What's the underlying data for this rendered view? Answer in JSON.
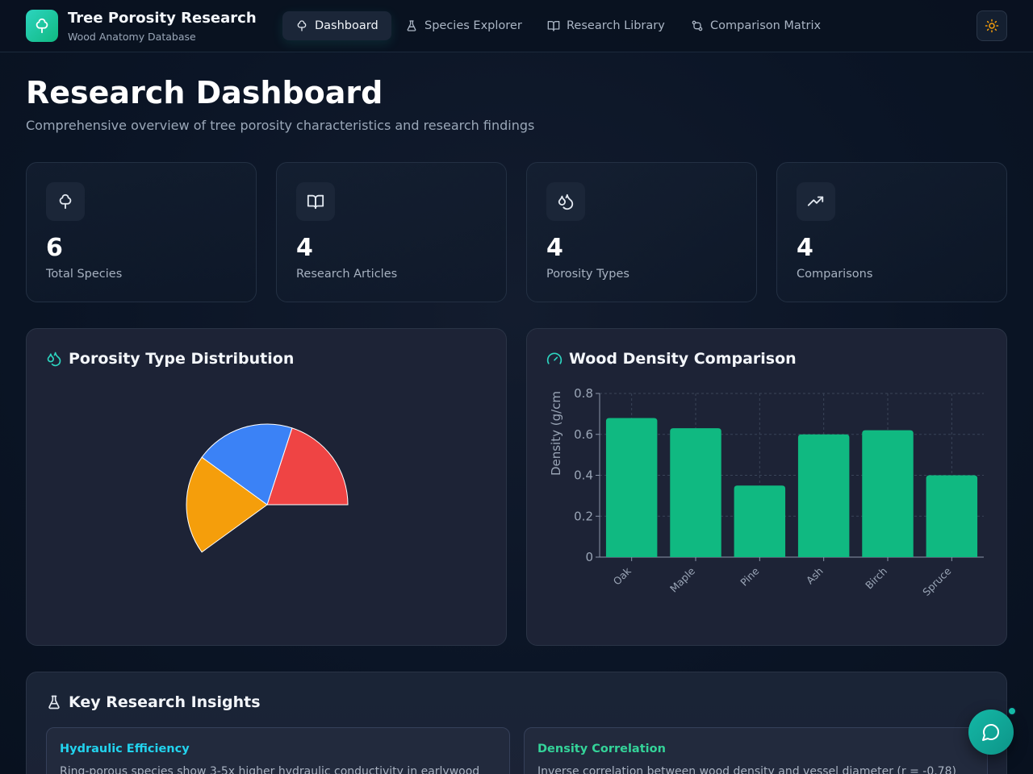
{
  "brand": {
    "title": "Tree Porosity Research",
    "subtitle": "Wood Anatomy Database"
  },
  "nav": [
    {
      "label": "Dashboard",
      "icon": "tree-icon",
      "active": true
    },
    {
      "label": "Species Explorer",
      "icon": "flask-icon",
      "active": false
    },
    {
      "label": "Research Library",
      "icon": "book-icon",
      "active": false
    },
    {
      "label": "Comparison Matrix",
      "icon": "compare-icon",
      "active": false
    }
  ],
  "page": {
    "title": "Research Dashboard",
    "subtitle": "Comprehensive overview of tree porosity characteristics and research findings"
  },
  "stats": [
    {
      "value": "6",
      "label": "Total Species",
      "icon": "tree-icon"
    },
    {
      "value": "4",
      "label": "Research Articles",
      "icon": "book-icon"
    },
    {
      "value": "4",
      "label": "Porosity Types",
      "icon": "droplets-icon"
    },
    {
      "value": "4",
      "label": "Comparisons",
      "icon": "trending-up-icon"
    }
  ],
  "panels": {
    "porosity_title": "Porosity Type Distribution",
    "density_title": "Wood Density Comparison",
    "insights_title": "Key Research Insights"
  },
  "chart_data": [
    {
      "type": "pie",
      "title": "Porosity Type Distribution",
      "labels": [
        "",
        "",
        ""
      ],
      "values": [
        2,
        2,
        2
      ],
      "colors": [
        "#ef4444",
        "#3b82f6",
        "#f59e0b"
      ],
      "legend": "none",
      "note_visible_span": "partial pie (slices occupy ~60% of circle)"
    },
    {
      "type": "bar",
      "title": "Wood Density Comparison",
      "categories": [
        "Oak",
        "Maple",
        "Pine",
        "Ash",
        "Birch",
        "Spruce"
      ],
      "values": [
        0.68,
        0.63,
        0.35,
        0.6,
        0.62,
        0.4
      ],
      "ylabel": "Density (g/cm",
      "xlabel": "",
      "ylim": [
        0,
        0.8
      ],
      "yticks": [
        "0",
        "0.2",
        "0.4",
        "0.6",
        "0.8"
      ],
      "grid": true,
      "color": "#10b981"
    }
  ],
  "insights": [
    {
      "title": "Hydraulic Efficiency",
      "text": "Ring-porous species show 3-5x higher hydraulic conductivity in earlywood",
      "color": "#22d3ee"
    },
    {
      "title": "Density Correlation",
      "text": "Inverse correlation between wood density and vessel diameter (r = -0.78)",
      "color": "#34d399"
    }
  ],
  "colors": {
    "accent": "#14b8a6",
    "bar": "#10b981",
    "text": "#e6edf5"
  }
}
